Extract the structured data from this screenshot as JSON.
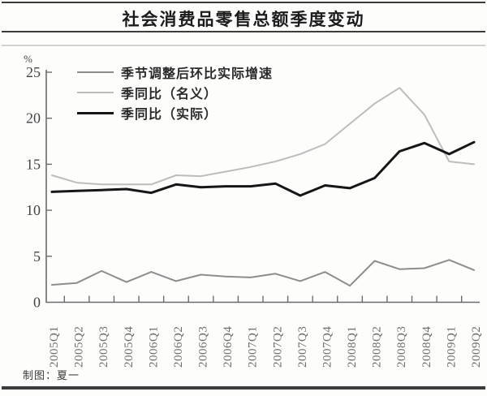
{
  "header": {
    "title": "社会消费品零售总额季度变动"
  },
  "footer": {
    "credit": "制图：夏一"
  },
  "chart_data": {
    "type": "line",
    "title": "社会消费品零售总额季度变动",
    "unit_label": "%",
    "xlabel": "",
    "ylabel": "%",
    "ylim": [
      0,
      25
    ],
    "yticks": [
      0,
      5,
      10,
      15,
      20,
      25
    ],
    "grid": false,
    "legend_position": "top-left",
    "categories": [
      "2005Q1",
      "2005Q2",
      "2005Q3",
      "2005Q4",
      "2006Q1",
      "2006Q2",
      "2006Q3",
      "2006Q4",
      "2007Q1",
      "2007Q2",
      "2007Q3",
      "2007Q4",
      "2008Q1",
      "2008Q2",
      "2008Q3",
      "2008Q4",
      "2009Q1",
      "2009Q2"
    ],
    "series": [
      {
        "name": "季节调整后环比实际增速",
        "color": "#8d8d8d",
        "stroke_width": 2,
        "values": [
          1.9,
          2.1,
          3.4,
          2.2,
          3.3,
          2.3,
          3.0,
          2.8,
          2.7,
          3.1,
          2.3,
          3.3,
          1.8,
          4.5,
          3.6,
          3.7,
          4.6,
          3.5
        ]
      },
      {
        "name": "季同比（名义）",
        "color": "#bdbdbd",
        "stroke_width": 2,
        "values": [
          13.8,
          13.0,
          12.8,
          12.8,
          12.8,
          13.8,
          13.7,
          14.2,
          14.7,
          15.3,
          16.1,
          17.2,
          19.4,
          21.6,
          23.3,
          20.4,
          15.3,
          15.0
        ]
      },
      {
        "name": "季同比（实际）",
        "color": "#161616",
        "stroke_width": 3,
        "values": [
          12.0,
          12.1,
          12.2,
          12.3,
          11.9,
          12.8,
          12.5,
          12.6,
          12.6,
          12.9,
          11.6,
          12.7,
          12.4,
          13.5,
          16.4,
          17.3,
          16.1,
          17.4
        ]
      }
    ],
    "axis_color": "#6b6b6b",
    "tick_label_color": "#6e6e6e",
    "y_label_color": "#444444"
  }
}
